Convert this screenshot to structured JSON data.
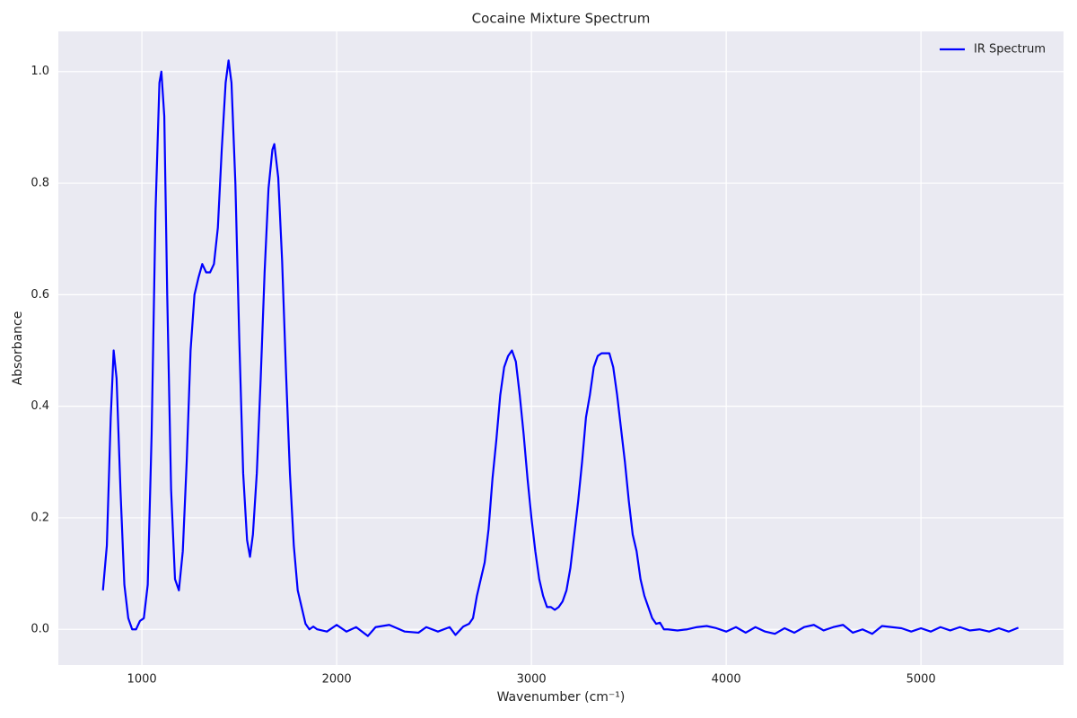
{
  "chart_data": {
    "type": "line",
    "title": "Cocaine Mixture Spectrum",
    "x_label": "Wavenumber (cm⁻¹)",
    "y_label": "Absorbance",
    "x": [
      800,
      820,
      840,
      855,
      870,
      890,
      910,
      930,
      950,
      970,
      990,
      1010,
      1030,
      1050,
      1070,
      1090,
      1100,
      1115,
      1130,
      1150,
      1170,
      1190,
      1210,
      1230,
      1250,
      1270,
      1290,
      1310,
      1330,
      1350,
      1370,
      1390,
      1410,
      1430,
      1445,
      1460,
      1480,
      1500,
      1520,
      1540,
      1555,
      1570,
      1590,
      1610,
      1630,
      1650,
      1670,
      1680,
      1700,
      1720,
      1740,
      1760,
      1780,
      1800,
      1820,
      1840,
      1860,
      1880,
      1900,
      1950,
      2000,
      2050,
      2100,
      2160,
      2200,
      2270,
      2350,
      2420,
      2460,
      2520,
      2580,
      2610,
      2650,
      2680,
      2700,
      2720,
      2740,
      2760,
      2780,
      2800,
      2820,
      2840,
      2860,
      2880,
      2900,
      2920,
      2940,
      2960,
      2980,
      3000,
      3020,
      3040,
      3060,
      3080,
      3100,
      3120,
      3140,
      3160,
      3180,
      3200,
      3220,
      3240,
      3260,
      3280,
      3300,
      3320,
      3340,
      3360,
      3380,
      3400,
      3420,
      3440,
      3460,
      3480,
      3500,
      3520,
      3540,
      3560,
      3580,
      3600,
      3620,
      3640,
      3660,
      3680,
      3700,
      3750,
      3800,
      3850,
      3900,
      3950,
      4000,
      4050,
      4100,
      4150,
      4200,
      4250,
      4300,
      4350,
      4400,
      4450,
      4500,
      4550,
      4600,
      4650,
      4700,
      4750,
      4800,
      4850,
      4900,
      4950,
      5000,
      5050,
      5100,
      5150,
      5200,
      5250,
      5300,
      5350,
      5400,
      5450,
      5500
    ],
    "series": [
      {
        "name": "IR Spectrum",
        "color": "#0000ff",
        "values": [
          0.07,
          0.15,
          0.38,
          0.5,
          0.45,
          0.25,
          0.08,
          0.02,
          0,
          0,
          0.015,
          0.02,
          0.08,
          0.35,
          0.75,
          0.98,
          1.0,
          0.92,
          0.6,
          0.25,
          0.09,
          0.07,
          0.14,
          0.3,
          0.5,
          0.6,
          0.63,
          0.655,
          0.64,
          0.64,
          0.655,
          0.72,
          0.86,
          0.98,
          1.02,
          0.98,
          0.8,
          0.52,
          0.28,
          0.16,
          0.13,
          0.17,
          0.28,
          0.45,
          0.64,
          0.79,
          0.86,
          0.87,
          0.81,
          0.66,
          0.46,
          0.28,
          0.15,
          0.07,
          0.04,
          0.01,
          0,
          0.005,
          0,
          -0.004,
          0.008,
          -0.004,
          0.004,
          -0.012,
          0.004,
          0.008,
          -0.004,
          -0.006,
          0.004,
          -0.004,
          0.004,
          -0.01,
          0.005,
          0.01,
          0.02,
          0.06,
          0.09,
          0.12,
          0.18,
          0.27,
          0.34,
          0.42,
          0.47,
          0.49,
          0.5,
          0.48,
          0.42,
          0.35,
          0.27,
          0.2,
          0.14,
          0.09,
          0.06,
          0.04,
          0.04,
          0.035,
          0.04,
          0.05,
          0.07,
          0.11,
          0.17,
          0.23,
          0.3,
          0.38,
          0.42,
          0.47,
          0.49,
          0.495,
          0.495,
          0.495,
          0.47,
          0.42,
          0.36,
          0.3,
          0.23,
          0.17,
          0.14,
          0.09,
          0.06,
          0.04,
          0.02,
          0.01,
          0.012,
          0,
          0,
          -0.002,
          0,
          0.004,
          0.006,
          0.002,
          -0.004,
          0.004,
          -0.006,
          0.004,
          -0.004,
          -0.008,
          0.002,
          -0.006,
          0.004,
          0.008,
          -0.002,
          0.004,
          0.008,
          -0.006,
          0,
          -0.008,
          0.006,
          0.004,
          0.002,
          -0.004,
          0.002,
          -0.004,
          0.004,
          -0.002,
          0.004,
          -0.002,
          0,
          -0.004,
          0.002,
          -0.004,
          0.003
        ]
      }
    ],
    "xlim": [
      571,
      5732
    ],
    "ylim": [
      -0.064,
      1.072
    ],
    "xticks": [
      1000,
      2000,
      3000,
      4000,
      5000
    ],
    "yticks": [
      {
        "value": 0,
        "label": "0.0"
      },
      0.2,
      0.4,
      0.6,
      0.8,
      {
        "value": 1,
        "label": "1.0"
      }
    ],
    "grid": true,
    "legend": "upper right"
  }
}
